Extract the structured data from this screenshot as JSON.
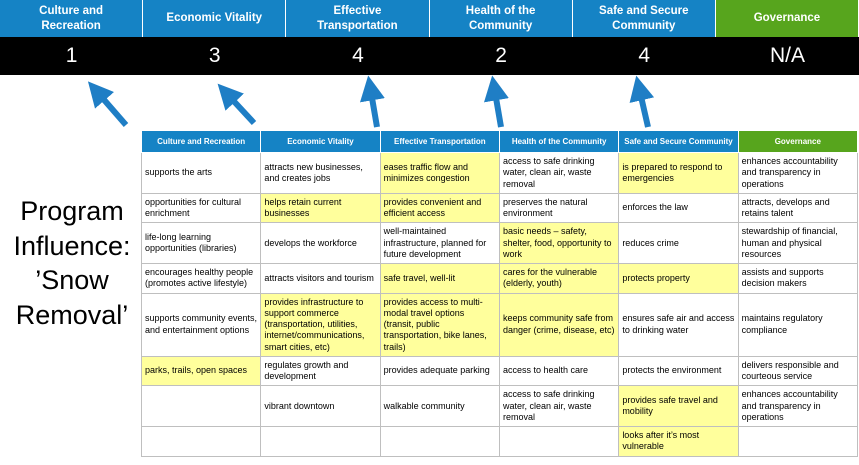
{
  "title": "Program Influence: ’Snow Removal’",
  "colors": {
    "blue": "#1583c5",
    "green": "#57a51d",
    "score_bg": "#000000",
    "score_text": "#ffffff",
    "highlight": "#ffff9c",
    "arrow": "#1f7ec5",
    "grid": "#bfbfbf"
  },
  "arrows": {
    "count": 5,
    "direction": "up",
    "meaning": "table columns map to scores above"
  },
  "scoreboard": {
    "columns": [
      {
        "label": "Culture and Recreation",
        "score": "1",
        "color": "blue"
      },
      {
        "label": "Economic Vitality",
        "score": "3",
        "color": "blue"
      },
      {
        "label": "Effective Transportation",
        "score": "4",
        "color": "blue"
      },
      {
        "label": "Health of the Community",
        "score": "2",
        "color": "blue"
      },
      {
        "label": "Safe and Secure Community",
        "score": "4",
        "color": "blue"
      },
      {
        "label": "Governance",
        "score": "N/A",
        "color": "green"
      }
    ]
  },
  "matrix": {
    "columns": [
      {
        "label": "Culture and Recreation",
        "color": "blue"
      },
      {
        "label": "Economic Vitality",
        "color": "blue"
      },
      {
        "label": "Effective Transportation",
        "color": "blue"
      },
      {
        "label": "Health of the Community",
        "color": "blue"
      },
      {
        "label": "Safe and Secure Community",
        "color": "blue"
      },
      {
        "label": "Governance",
        "color": "green"
      }
    ],
    "rows": [
      [
        {
          "t": "supports the arts"
        },
        {
          "t": "attracts new businesses, and creates jobs"
        },
        {
          "t": "eases traffic flow and minimizes congestion",
          "hl": true
        },
        {
          "t": "access to safe drinking water, clean air, waste removal"
        },
        {
          "t": "is prepared to respond to emergencies",
          "hl": true
        },
        {
          "t": "enhances accountability and transparency in operations"
        }
      ],
      [
        {
          "t": "opportunities for cultural enrichment"
        },
        {
          "t": "helps retain current businesses",
          "hl": true
        },
        {
          "t": "provides convenient and efficient access",
          "hl": true
        },
        {
          "t": "preserves the natural environment"
        },
        {
          "t": "enforces the law"
        },
        {
          "t": "attracts, develops and retains talent"
        }
      ],
      [
        {
          "t": "life-long learning opportunities (libraries)"
        },
        {
          "t": "develops the workforce"
        },
        {
          "t": "well-maintained infrastructure, planned for future development"
        },
        {
          "t": "basic needs – safety, shelter, food, opportunity to work",
          "hl": true
        },
        {
          "t": "reduces crime"
        },
        {
          "t": "stewardship of financial, human and physical resources"
        }
      ],
      [
        {
          "t": "encourages healthy people (promotes active lifestyle)"
        },
        {
          "t": "attracts visitors and tourism"
        },
        {
          "t": "safe travel, well-lit",
          "hl": true
        },
        {
          "t": "cares for the vulnerable (elderly, youth)",
          "hl": true
        },
        {
          "t": "protects property",
          "hl": true
        },
        {
          "t": "assists and supports decision makers"
        }
      ],
      [
        {
          "t": "supports community events, and entertainment options"
        },
        {
          "t": "provides infrastructure to support commerce (transportation, utilities, internet/communications, smart cities, etc)",
          "hl": true
        },
        {
          "t": "provides access to multi-modal travel options (transit, public transportation, bike lanes, trails)",
          "hl": true
        },
        {
          "t": "keeps community safe from danger (crime, disease, etc)",
          "hl": true
        },
        {
          "t": "ensures safe air and access to drinking water"
        },
        {
          "t": "maintains regulatory compliance"
        }
      ],
      [
        {
          "t": "parks, trails, open spaces",
          "hl": true
        },
        {
          "t": "regulates growth and development"
        },
        {
          "t": "provides adequate parking"
        },
        {
          "t": "access to health care"
        },
        {
          "t": "protects the environment"
        },
        {
          "t": "delivers responsible and courteous service"
        }
      ],
      [
        {
          "t": ""
        },
        {
          "t": "vibrant downtown"
        },
        {
          "t": "walkable community"
        },
        {
          "t": "access to safe drinking water, clean air, waste removal"
        },
        {
          "t": "provides safe travel and mobility",
          "hl": true
        },
        {
          "t": "enhances accountability and transparency in operations"
        }
      ],
      [
        {
          "t": ""
        },
        {
          "t": ""
        },
        {
          "t": ""
        },
        {
          "t": ""
        },
        {
          "t": "looks after it’s most vulnerable",
          "hl": true
        },
        {
          "t": ""
        }
      ]
    ]
  }
}
